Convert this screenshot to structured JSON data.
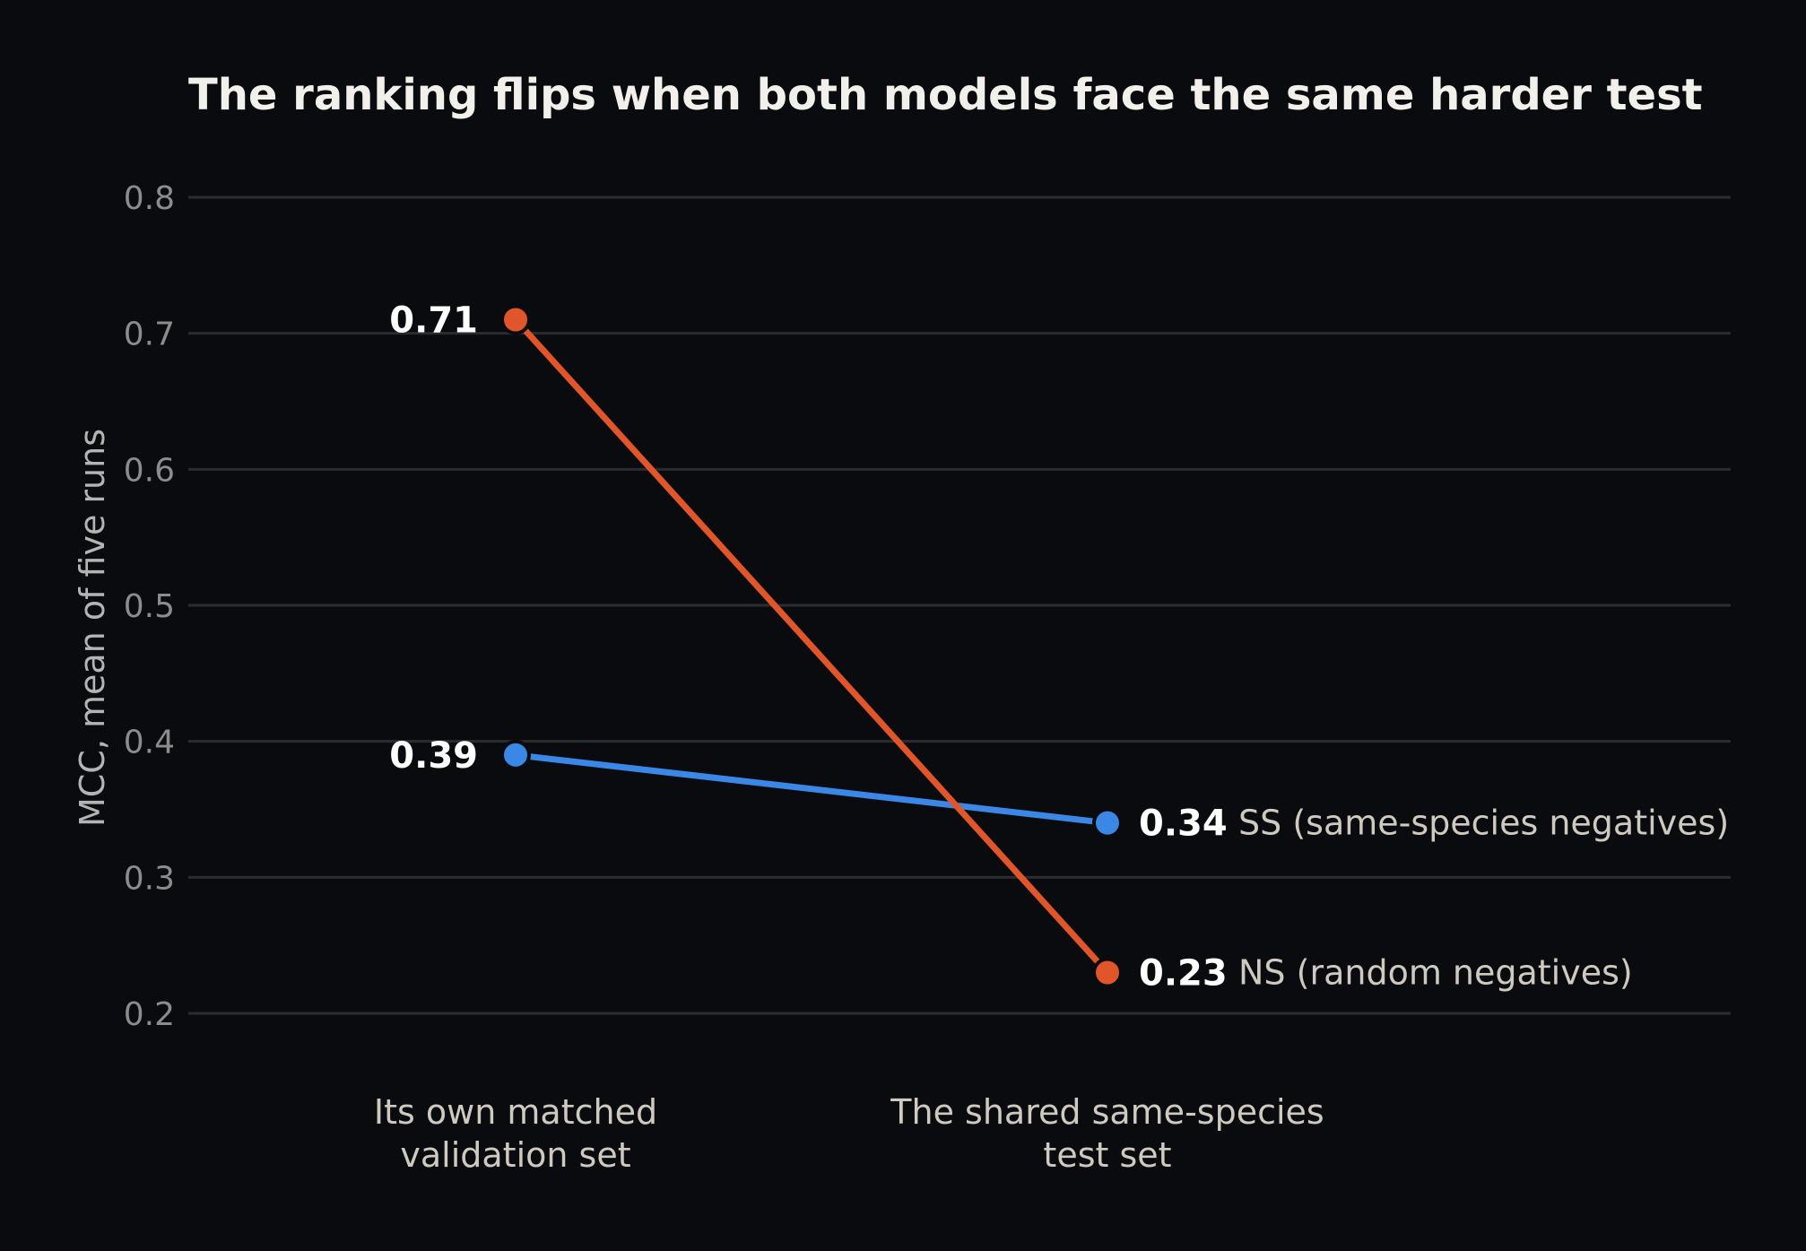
{
  "chart_data": {
    "type": "line",
    "title": "The ranking flips when both models face the same harder test",
    "ylabel": "MCC, mean of five runs",
    "xlabel": "",
    "categories": [
      [
        "Its own matched",
        "validation set"
      ],
      [
        "The shared same-species",
        "test set"
      ]
    ],
    "ylim": [
      0.2,
      0.8
    ],
    "yticks": [
      0.2,
      0.3,
      0.4,
      0.5,
      0.6,
      0.7,
      0.8
    ],
    "grid": true,
    "series": [
      {
        "name": "SS (same-species negatives)",
        "values": [
          0.39,
          0.34
        ],
        "value_labels": [
          "0.39",
          "0.34"
        ],
        "color": "#3b87e6"
      },
      {
        "name": "NS (random negatives)",
        "values": [
          0.71,
          0.23
        ],
        "value_labels": [
          "0.71",
          "0.23"
        ],
        "color": "#e0562a"
      }
    ]
  }
}
